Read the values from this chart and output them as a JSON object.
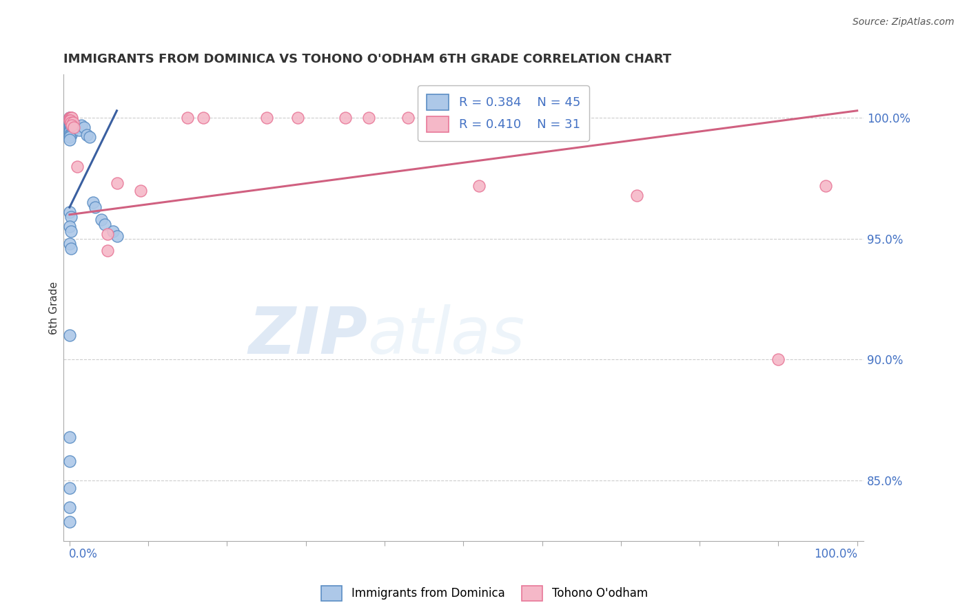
{
  "title": "IMMIGRANTS FROM DOMINICA VS TOHONO O'ODHAM 6TH GRADE CORRELATION CHART",
  "source": "Source: ZipAtlas.com",
  "ylabel": "6th Grade",
  "ylabel_right_ticks": [
    "100.0%",
    "95.0%",
    "90.0%",
    "85.0%"
  ],
  "ylabel_right_vals": [
    1.0,
    0.95,
    0.9,
    0.85
  ],
  "ymin": 0.825,
  "ymax": 1.018,
  "xmin": -0.008,
  "xmax": 1.008,
  "legend_blue_label": "Immigrants from Dominica",
  "legend_pink_label": "Tohono O'odham",
  "R_blue": 0.384,
  "N_blue": 45,
  "R_pink": 0.41,
  "N_pink": 31,
  "blue_face_color": "#adc8e8",
  "pink_face_color": "#f5b8c8",
  "blue_edge_color": "#5b8ec4",
  "pink_edge_color": "#e87898",
  "blue_line_color": "#3a5fa0",
  "pink_line_color": "#d06080",
  "blue_scatter": [
    [
      0.0,
      1.0
    ],
    [
      0.0,
      1.0
    ],
    [
      0.002,
      1.0
    ],
    [
      0.003,
      0.999
    ],
    [
      0.001,
      0.999
    ],
    [
      0.002,
      0.998
    ],
    [
      0.0,
      0.998
    ],
    [
      0.0,
      0.997
    ],
    [
      0.001,
      0.997
    ],
    [
      0.003,
      0.997
    ],
    [
      0.0,
      0.996
    ],
    [
      0.002,
      0.996
    ],
    [
      0.0,
      0.995
    ],
    [
      0.001,
      0.995
    ],
    [
      0.0,
      0.994
    ],
    [
      0.003,
      0.994
    ],
    [
      0.0,
      0.993
    ],
    [
      0.002,
      0.993
    ],
    [
      0.0,
      0.992
    ],
    [
      0.0,
      0.991
    ],
    [
      0.008,
      0.997
    ],
    [
      0.01,
      0.996
    ],
    [
      0.012,
      0.995
    ],
    [
      0.015,
      0.997
    ],
    [
      0.018,
      0.996
    ],
    [
      0.022,
      0.993
    ],
    [
      0.025,
      0.992
    ],
    [
      0.03,
      0.965
    ],
    [
      0.032,
      0.963
    ],
    [
      0.04,
      0.958
    ],
    [
      0.045,
      0.956
    ],
    [
      0.055,
      0.953
    ],
    [
      0.06,
      0.951
    ],
    [
      0.0,
      0.961
    ],
    [
      0.002,
      0.959
    ],
    [
      0.0,
      0.955
    ],
    [
      0.002,
      0.953
    ],
    [
      0.0,
      0.948
    ],
    [
      0.002,
      0.946
    ],
    [
      0.0,
      0.91
    ],
    [
      0.0,
      0.868
    ],
    [
      0.0,
      0.858
    ],
    [
      0.0,
      0.847
    ],
    [
      0.0,
      0.839
    ],
    [
      0.0,
      0.833
    ]
  ],
  "pink_scatter": [
    [
      0.0,
      1.0
    ],
    [
      0.001,
      1.0
    ],
    [
      0.002,
      1.0
    ],
    [
      0.003,
      1.0
    ],
    [
      0.0,
      0.999
    ],
    [
      0.001,
      0.999
    ],
    [
      0.002,
      0.998
    ],
    [
      0.004,
      0.998
    ],
    [
      0.003,
      0.997
    ],
    [
      0.005,
      0.996
    ],
    [
      0.15,
      1.0
    ],
    [
      0.17,
      1.0
    ],
    [
      0.25,
      1.0
    ],
    [
      0.29,
      1.0
    ],
    [
      0.35,
      1.0
    ],
    [
      0.38,
      1.0
    ],
    [
      0.43,
      1.0
    ],
    [
      0.45,
      1.0
    ],
    [
      0.53,
      1.0
    ],
    [
      0.56,
      1.0
    ],
    [
      0.6,
      1.0
    ],
    [
      0.62,
      1.0
    ],
    [
      0.01,
      0.98
    ],
    [
      0.06,
      0.973
    ],
    [
      0.09,
      0.97
    ],
    [
      0.52,
      0.972
    ],
    [
      0.72,
      0.968
    ],
    [
      0.96,
      0.972
    ],
    [
      0.048,
      0.952
    ],
    [
      0.048,
      0.945
    ],
    [
      0.9,
      0.9
    ]
  ],
  "blue_trendline_x": [
    0.0,
    0.06
  ],
  "blue_trendline_y": [
    0.963,
    1.003
  ],
  "pink_trendline_x": [
    0.0,
    1.0
  ],
  "pink_trendline_y": [
    0.96,
    1.003
  ],
  "watermark_zip": "ZIP",
  "watermark_atlas": "atlas",
  "grid_color": "#cccccc",
  "title_color": "#333333",
  "axis_label_color": "#4472c4",
  "source_color": "#555555"
}
